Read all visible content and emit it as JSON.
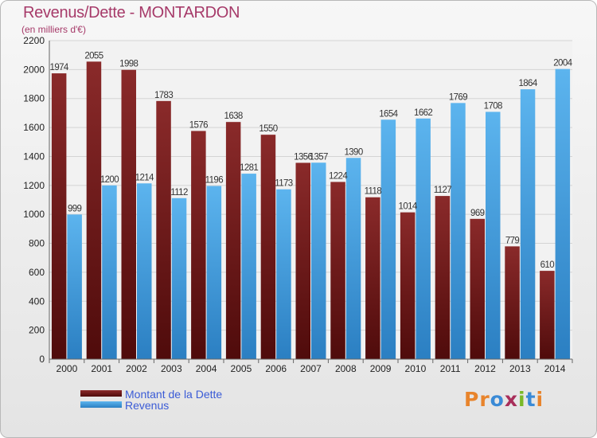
{
  "title": "Revenus/Dette - MONTARDON",
  "subtitle": "(en milliers d'€)",
  "logo": {
    "letters": [
      "P",
      "r",
      "o",
      "x",
      "i",
      "t",
      "i"
    ],
    "colors": [
      "#e8842c",
      "#e8842c",
      "#3a8ad6",
      "#a82e5a",
      "#7ab928",
      "#3a8ad6",
      "#e8842c"
    ]
  },
  "colors": {
    "dette": "#7d1e1e",
    "revenus": "#4aa3e3",
    "grid": "#d4d4d4"
  },
  "chart_data": {
    "type": "bar",
    "categories": [
      "2000",
      "2001",
      "2002",
      "2003",
      "2004",
      "2005",
      "2006",
      "2007",
      "2008",
      "2009",
      "2010",
      "2011",
      "2012",
      "2013",
      "2014"
    ],
    "series": [
      {
        "name": "Montant de la Dette",
        "values": [
          1974,
          2055,
          1998,
          1783,
          1576,
          1638,
          1550,
          1356,
          1224,
          1118,
          1014,
          1127,
          969,
          779,
          610
        ]
      },
      {
        "name": "Revenus",
        "values": [
          999,
          1200,
          1214,
          1112,
          1196,
          1281,
          1173,
          1357,
          1390,
          1654,
          1662,
          1769,
          1708,
          1864,
          2004
        ]
      }
    ],
    "yticks": [
      0,
      200,
      400,
      600,
      800,
      1000,
      1200,
      1400,
      1600,
      1800,
      2000,
      2200
    ],
    "ylim": [
      0,
      2200
    ],
    "grid": true,
    "legend_position": "bottom-left"
  }
}
